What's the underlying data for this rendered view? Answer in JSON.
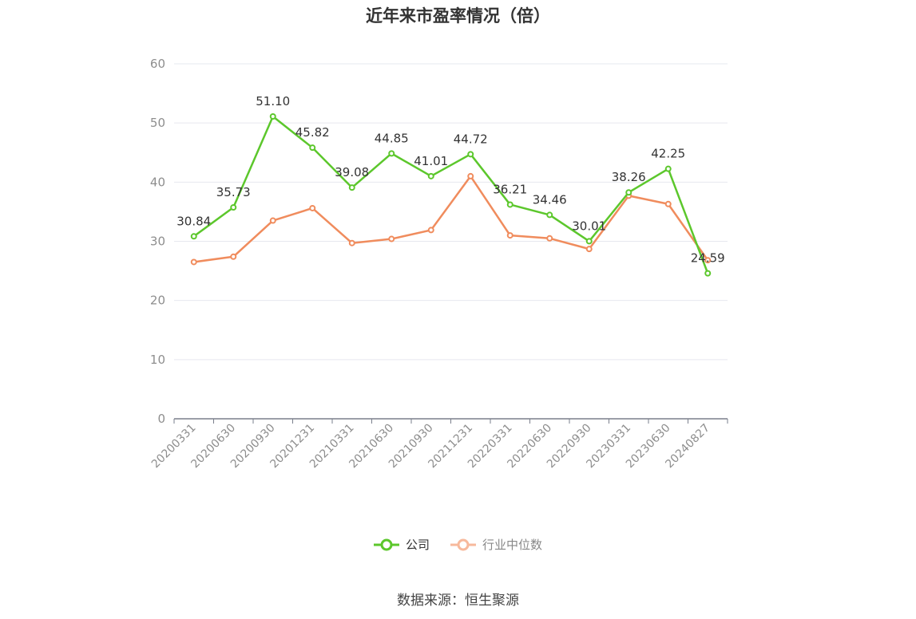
{
  "title": "近年来市盈率情况（倍）",
  "source": "数据来源：恒生聚源",
  "colors": {
    "company": "#5cc72c",
    "industry": "#f08c5d",
    "industry_legend": "#f7b99c",
    "grid": "#e6e8ef",
    "axis": "#7a7f8c",
    "tick_text": "#8e8e8e",
    "label_text": "#333333"
  },
  "legend": {
    "company": "公司",
    "industry": "行业中位数"
  },
  "chart_data": {
    "type": "line",
    "title": "近年来市盈率情况（倍）",
    "x": [
      "20200331",
      "20200630",
      "20200930",
      "20201231",
      "20210331",
      "20210630",
      "20210930",
      "20211231",
      "20220331",
      "20220630",
      "20220930",
      "20230331",
      "20230630",
      "20240827"
    ],
    "series": [
      {
        "name": "公司",
        "values": [
          30.84,
          35.73,
          51.1,
          45.82,
          39.08,
          44.85,
          41.01,
          44.72,
          36.21,
          34.46,
          30.01,
          38.26,
          42.25,
          24.59
        ],
        "labels": [
          "30.84",
          "35.73",
          "51.10",
          "45.82",
          "39.08",
          "44.85",
          "41.01",
          "44.72",
          "36.21",
          "34.46",
          "30.01",
          "38.26",
          "42.25",
          "24.59"
        ]
      },
      {
        "name": "行业中位数",
        "values": [
          26.5,
          27.4,
          33.5,
          35.6,
          29.7,
          30.4,
          31.9,
          41.0,
          31.0,
          30.5,
          28.7,
          37.7,
          36.3,
          26.8
        ]
      }
    ],
    "yticks": [
      0,
      10,
      20,
      30,
      40,
      50,
      60
    ],
    "ylim": [
      0,
      60
    ],
    "grid": true,
    "legend_position": "bottom"
  }
}
